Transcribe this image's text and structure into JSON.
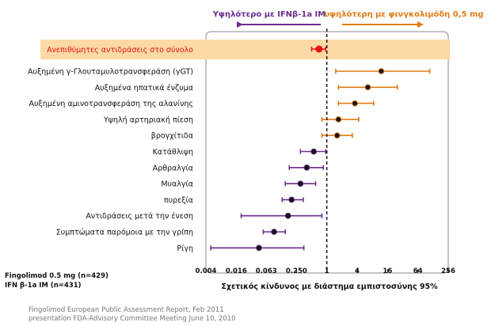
{
  "chart_data": {
    "type": "forest",
    "x_scale": "log2",
    "xlim": [
      0.004,
      256
    ],
    "x_ticks": [
      "0.004",
      "0.016",
      "0.063",
      "0.250",
      "1",
      "4",
      "16",
      "64",
      "256"
    ],
    "reference_line": 1,
    "xlabel": "Σχετικός κίνδυνος με διάστημα εμπιστοσύνης 95%",
    "direction_left": "Υψηλότερο με IFNβ-1a IM",
    "direction_right": "υψηλότερη με φινγκολιμόδη 0,5 mg",
    "colors": {
      "left": "#6a2c91",
      "right": "#e07b14",
      "highlight": "#e8110f",
      "highlight_band": "#fdd9a6"
    },
    "highlight": {
      "label": "Ανεπιθύμητες αντιδράσεις στο σύνολο",
      "estimate": 0.7,
      "ci": [
        0.5,
        0.95
      ]
    },
    "rows": [
      {
        "label": "Αυξημένη γ-Γλουταμυλοτρανσφεράση (γGT)",
        "estimate": 12,
        "ci": [
          1.5,
          110
        ],
        "side": "right"
      },
      {
        "label": "Αυξημένα ηπατικά ένζυμα",
        "estimate": 6.5,
        "ci": [
          1.7,
          25
        ],
        "side": "right"
      },
      {
        "label": "Αυξημένη αμινοτρανσφεράση της αλανίνης",
        "estimate": 3.6,
        "ci": [
          1.7,
          8.5
        ],
        "side": "right"
      },
      {
        "label": "Υψηλή αρτηριακή πίεση",
        "estimate": 1.7,
        "ci": [
          0.8,
          4.3
        ],
        "side": "right"
      },
      {
        "label": "βρογχίτιδα",
        "estimate": 1.6,
        "ci": [
          0.8,
          3.2
        ],
        "side": "right"
      },
      {
        "label": "Κατάθλιψη",
        "estimate": 0.55,
        "ci": [
          0.3,
          0.95
        ],
        "side": "left"
      },
      {
        "label": "Αρθραλγία",
        "estimate": 0.4,
        "ci": [
          0.18,
          0.85
        ],
        "side": "left"
      },
      {
        "label": "Μυαλγία",
        "estimate": 0.3,
        "ci": [
          0.15,
          0.6
        ],
        "side": "left"
      },
      {
        "label": "πυρεξία",
        "estimate": 0.2,
        "ci": [
          0.13,
          0.34
        ],
        "side": "left"
      },
      {
        "label": "Αντιδράσεις μετά την ένεση",
        "estimate": 0.17,
        "ci": [
          0.02,
          0.8
        ],
        "side": "left"
      },
      {
        "label": "Συμπτώματα παρόμοια με την γρίπη",
        "estimate": 0.09,
        "ci": [
          0.055,
          0.15
        ],
        "side": "left"
      },
      {
        "label": "Ρίγη",
        "estimate": 0.045,
        "ci": [
          0.005,
          0.35
        ],
        "side": "left"
      }
    ],
    "legend": [
      "Fingolimod 0.5 mg (n=429)",
      "IFN β-1a IM (n=431)"
    ],
    "source": [
      "Fingolimod European Public Assessment Report, Feb 2011",
      "presentation FDA-Advisory Committee Meeting June 10, 2010"
    ]
  }
}
